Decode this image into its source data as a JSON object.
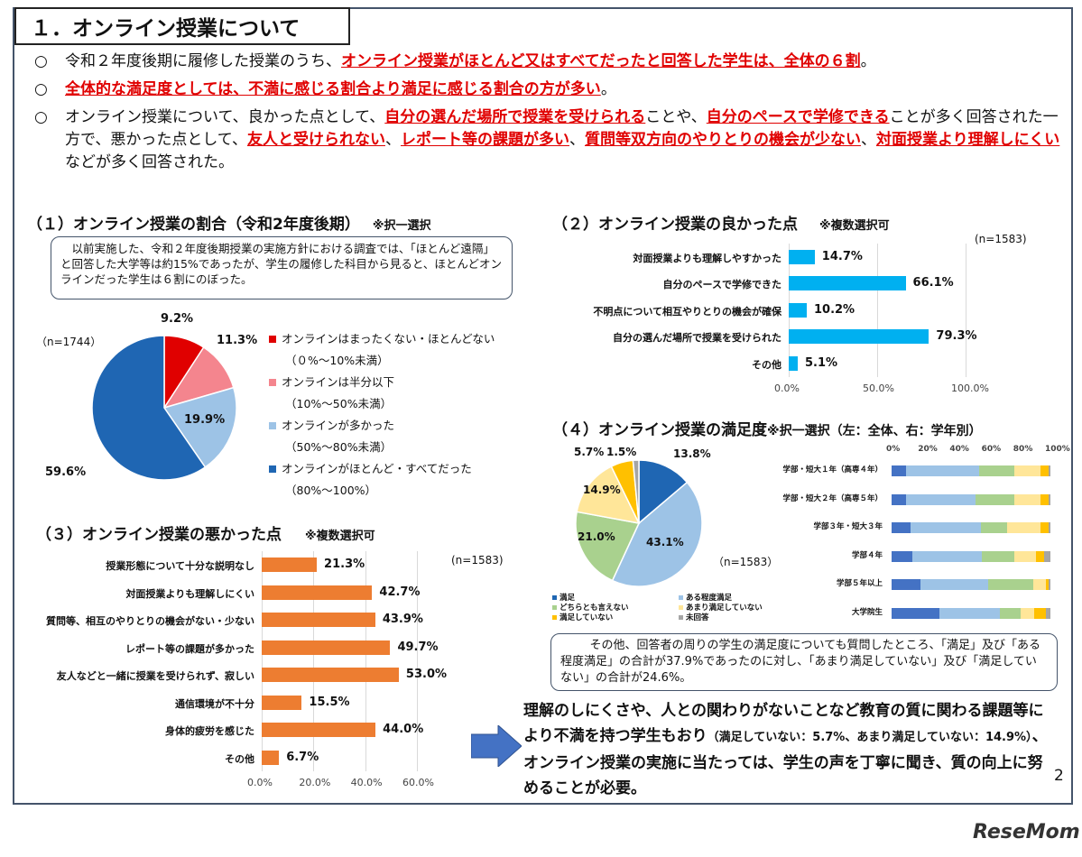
{
  "title": "１．オンライン授業について",
  "bullets": [
    {
      "mark": "○",
      "parts": [
        {
          "t": "令和２年度後期に履修した授業のうち、",
          "r": false
        },
        {
          "t": "オンライン授業がほとんど又はすべてだったと回答した学生は、全体の６割",
          "r": true
        },
        {
          "t": "。",
          "r": false
        }
      ]
    },
    {
      "mark": "○",
      "parts": [
        {
          "t": "全体的な満足度としては、不満に感じる割合より満足に感じる割合の方が多い",
          "r": true
        },
        {
          "t": "。",
          "r": false
        }
      ]
    },
    {
      "mark": "○",
      "parts": [
        {
          "t": "オンライン授業について、良かった点として、",
          "r": false
        },
        {
          "t": "自分の選んだ場所で授業を受けられる",
          "r": true
        },
        {
          "t": "ことや、",
          "r": false
        },
        {
          "t": "自分のペースで学修できる",
          "r": true
        },
        {
          "t": "ことが多く回答された一方で、悪かった点として、",
          "r": false
        },
        {
          "t": "友人と受けられない",
          "r": true
        },
        {
          "t": "、",
          "r": false
        },
        {
          "t": "レポート等の課題が多い",
          "r": true
        },
        {
          "t": "、",
          "r": false
        },
        {
          "t": "質問等双方向のやりとりの機会が少ない",
          "r": true
        },
        {
          "t": "、",
          "r": false
        },
        {
          "t": "対面授業より理解しにくい",
          "r": true
        },
        {
          "t": "などが多く回答された。",
          "r": false
        }
      ]
    }
  ],
  "sec1": {
    "title": "（１）オンライン授業の割合（令和2年度後期）",
    "note": "※択一選択",
    "callout": "以前実施した、令和２年度後期授業の実施方針における調査では、「ほとんど遠隔」と回答した大学等は約15%であったが、学生の履修した科目から見ると、ほとんどオンラインだった学生は６割にのぼった。",
    "n": "（n=1744）"
  },
  "sec2": {
    "title": "（２）オンライン授業の良かった点",
    "note": "※複数選択可",
    "n": "(n=1583)"
  },
  "sec3": {
    "title": "（３）オンライン授業の悪かった点",
    "note": "※複数選択可",
    "n": "(n=1583)"
  },
  "sec4": {
    "title": "（４）オンライン授業の満足度",
    "note": "※択一選択（左：全体、右：学年別）",
    "n": "（n=1583）",
    "callout": "その他、回答者の周りの学生の満足度についても質問したところ、「満足」及び「ある程度満足」の合計が37.9%であったのに対し、「あまり満足していない」及び「満足していない」の合計が24.6%。"
  },
  "conclusion": {
    "p1": "理解のしにくさや、人との関わりがないことなど教育の質に関わる課題等により不満を持つ学生もおり",
    "p2": "（満足していない：5.7%、あまり満足していない：14.9%）",
    "p3": "、オンライン授業の実施に当たっては、学生の声を丁寧に聞き、質の向上に努めることが必要。"
  },
  "page_number": "2",
  "logo": "ReseMom",
  "colors": {
    "orange": "#ed7d31",
    "blue": "#00b0f0",
    "red": "#e00000"
  },
  "chart_data": [
    {
      "type": "pie",
      "id": "ratio",
      "labels": [
        "オンラインはまったくない・ほとんどない",
        "オンラインは半分以下",
        "オンラインが多かった",
        "オンラインがほとんど・すべてだった"
      ],
      "sublabels": [
        "（０%～10%未満）",
        "（10%～50%未満）",
        "（50%～80%未満）",
        "（80%～100%）"
      ],
      "values": [
        9.2,
        11.3,
        19.9,
        59.6
      ],
      "value_labels": [
        "9.2%",
        "11.3%",
        "19.9%",
        "59.6%"
      ],
      "colors": [
        "#e00000",
        "#f4858e",
        "#9dc3e6",
        "#1f66b3"
      ]
    },
    {
      "type": "bar",
      "id": "good",
      "orientation": "horizontal",
      "categories": [
        "対面授業よりも理解しやすかった",
        "自分のペースで学修できた",
        "不明点について相互やりとりの機会が確保",
        "自分の選んだ場所で授業を受けられた",
        "その他"
      ],
      "values": [
        14.7,
        66.1,
        10.2,
        79.3,
        5.1
      ],
      "value_labels": [
        "14.7%",
        "66.1%",
        "10.2%",
        "79.3%",
        "5.1%"
      ],
      "xlim": [
        0,
        100
      ],
      "ticks": [
        "0.0%",
        "50.0%",
        "100.0%"
      ],
      "color": "#00b0f0"
    },
    {
      "type": "bar",
      "id": "bad",
      "orientation": "horizontal",
      "categories": [
        "授業形態について十分な説明なし",
        "対面授業よりも理解しにくい",
        "質問等、相互のやりとりの機会がない・少ない",
        "レポート等の課題が多かった",
        "友人などと一緒に授業を受けられず、寂しい",
        "通信環境が不十分",
        "身体的疲労を感じた",
        "その他"
      ],
      "values": [
        21.3,
        42.7,
        43.9,
        49.7,
        53.0,
        15.5,
        44.0,
        6.7
      ],
      "value_labels": [
        "21.3%",
        "42.7%",
        "43.9%",
        "49.7%",
        "53.0%",
        "15.5%",
        "44.0%",
        "6.7%"
      ],
      "xlim": [
        0,
        60
      ],
      "ticks": [
        "0.0%",
        "20.0%",
        "40.0%",
        "60.0%"
      ],
      "color": "#ed7d31"
    },
    {
      "type": "pie",
      "id": "satisfaction",
      "labels": [
        "満足",
        "ある程度満足",
        "どちらとも言えない",
        "あまり満足していない",
        "満足していない",
        "未回答"
      ],
      "values": [
        13.8,
        43.1,
        21.0,
        14.9,
        5.7,
        1.5
      ],
      "value_labels": [
        "13.8%",
        "43.1%",
        "21.0%",
        "14.9%",
        "5.7%",
        "1.5%"
      ],
      "colors": [
        "#1f66b3",
        "#9dc3e6",
        "#a9d18e",
        "#ffe699",
        "#ffc000",
        "#a5a5a5"
      ]
    },
    {
      "type": "bar",
      "id": "satisfaction_by_year",
      "orientation": "horizontal",
      "stacked": true,
      "categories": [
        "学部・短大１年（高専４年）",
        "学部・短大２年（高専５年）",
        "学部３年・短大３年",
        "学部４年",
        "学部５年以上",
        "大学院生"
      ],
      "series": [
        {
          "name": "満足",
          "values": [
            9,
            9,
            12,
            13,
            18,
            30
          ]
        },
        {
          "name": "ある程度満足",
          "values": [
            46,
            44,
            44,
            44,
            43,
            38
          ]
        },
        {
          "name": "どちらとも言えない",
          "values": [
            22,
            24,
            17,
            20,
            28,
            13
          ]
        },
        {
          "name": "あまり満足していない",
          "values": [
            17,
            17,
            21,
            14,
            8,
            9
          ]
        },
        {
          "name": "満足していない",
          "values": [
            5,
            5,
            5,
            5,
            2,
            7
          ]
        },
        {
          "name": "未回答",
          "values": [
            1,
            1,
            1,
            4,
            1,
            3
          ]
        }
      ],
      "xlim": [
        0,
        100
      ],
      "ticks": [
        "0%",
        "20%",
        "40%",
        "60%",
        "80%",
        "100%"
      ],
      "colors": [
        "#4472c4",
        "#9dc3e6",
        "#a9d18e",
        "#ffe699",
        "#ffc000",
        "#a5a5a5"
      ]
    }
  ]
}
